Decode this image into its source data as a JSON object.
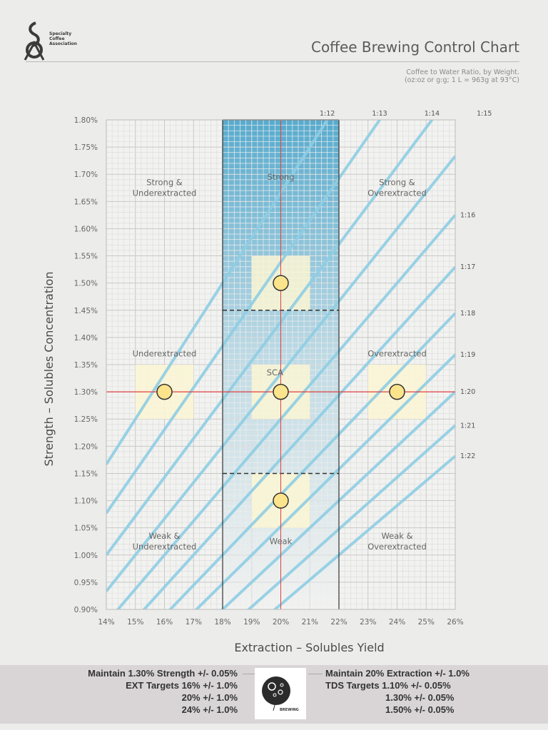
{
  "header": {
    "logo_text": [
      "Specialty",
      "Coffee",
      "Association"
    ],
    "title": "Coffee Brewing Control Chart",
    "subtitle_line1": "Coffee to Water Ratio, by Weight.",
    "subtitle_line2": "(oz:oz or g:g; 1 L = 963g at 93°C)"
  },
  "chart_data": {
    "type": "scatter",
    "title": "Coffee Brewing Control Chart",
    "xlabel": "Extraction – Solubles Yield",
    "ylabel": "Strength – Solubles Concentration",
    "xlim": [
      14,
      26
    ],
    "ylim": [
      0.9,
      1.8
    ],
    "x_ticks": [
      "14%",
      "15%",
      "16%",
      "17%",
      "18%",
      "19%",
      "20%",
      "21%",
      "22%",
      "23%",
      "24%",
      "25%",
      "26%"
    ],
    "y_ticks": [
      "0.90%",
      "0.95%",
      "1.00%",
      "1.05%",
      "1.10%",
      "1.15%",
      "1.20%",
      "1.25%",
      "1.30%",
      "1.35%",
      "1.40%",
      "1.45%",
      "1.50%",
      "1.55%",
      "1.60%",
      "1.65%",
      "1.70%",
      "1.75%",
      "1.80%"
    ],
    "grid": true,
    "ratio_lines": [
      12,
      13,
      14,
      15,
      16,
      17,
      18,
      19,
      20,
      21,
      22
    ],
    "ratio_top_labels": [
      "1:12",
      "1:13",
      "1:14",
      "1:15"
    ],
    "ratio_right_labels": [
      "1:16",
      "1:17",
      "1:18",
      "1:19",
      "1:20",
      "1:21",
      "1:22"
    ],
    "region_labels": [
      {
        "text": [
          "Strong &",
          "Underextracted"
        ],
        "x": 16,
        "y": 1.68
      },
      {
        "text": [
          "Strong"
        ],
        "x": 20,
        "y": 1.69
      },
      {
        "text": [
          "Strong &",
          "Overextracted"
        ],
        "x": 24,
        "y": 1.68
      },
      {
        "text": [
          "Underextracted"
        ],
        "x": 16,
        "y": 1.365
      },
      {
        "text": [
          "SCA"
        ],
        "x": 19.8,
        "y": 1.33
      },
      {
        "text": [
          "Overextracted"
        ],
        "x": 24,
        "y": 1.365
      },
      {
        "text": [
          "Weak &",
          "Underextracted"
        ],
        "x": 16,
        "y": 1.03
      },
      {
        "text": [
          "Weak"
        ],
        "x": 20,
        "y": 1.02
      },
      {
        "text": [
          "Weak &",
          "Overextracted"
        ],
        "x": 24,
        "y": 1.03
      }
    ],
    "points": [
      {
        "x": 20,
        "y": 1.5
      },
      {
        "x": 16,
        "y": 1.3
      },
      {
        "x": 20,
        "y": 1.3
      },
      {
        "x": 24,
        "y": 1.3
      },
      {
        "x": 20,
        "y": 1.1
      }
    ],
    "target_boxes": [
      {
        "x": [
          19,
          21
        ],
        "y": [
          1.45,
          1.55
        ]
      },
      {
        "x": [
          15,
          17
        ],
        "y": [
          1.25,
          1.35
        ]
      },
      {
        "x": [
          19,
          21
        ],
        "y": [
          1.25,
          1.35
        ]
      },
      {
        "x": [
          23,
          25
        ],
        "y": [
          1.25,
          1.35
        ]
      },
      {
        "x": [
          19,
          21
        ],
        "y": [
          1.05,
          1.15
        ]
      }
    ],
    "ideal_band": {
      "x": [
        18,
        22
      ]
    },
    "dashed_limits": [
      1.45,
      1.15
    ],
    "reference": {
      "x": 20,
      "y": 1.3
    },
    "colors": {
      "ratio_line": "#8ecde3",
      "band": "#4fa7cc",
      "point": "#fbe48b",
      "ref": "#e04040",
      "box": "#fbf6d4"
    }
  },
  "footer": {
    "left_lines": [
      "Maintain 1.30% Strength +/- 0.05%",
      "EXT Targets 16% +/- 1.0%",
      "20% +/- 1.0%",
      "24% +/- 1.0%"
    ],
    "right_lines": [
      "Maintain 20% Extraction +/- 1.0%",
      "TDS Targets 1.10% +/- 0.05%",
      "1.30% +/- 0.05%",
      "1.50% +/- 0.05%"
    ],
    "brew_label": "BREWING"
  }
}
